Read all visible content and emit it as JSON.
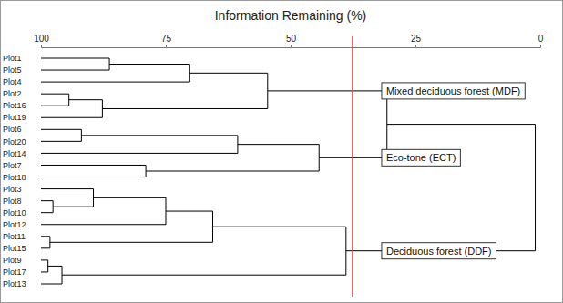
{
  "chart_data": {
    "type": "dendrogram",
    "title": "Information Remaining (%)",
    "xlim": [
      100,
      0
    ],
    "xticks": [
      100,
      75,
      50,
      25,
      0
    ],
    "threshold": {
      "value": 37.6,
      "color": "#d24b4b"
    },
    "color": "#000000",
    "tree": {
      "value": 1.0,
      "children": [
        {
          "value": 30.7,
          "children": [
            {
              "value": 54.6,
              "label": "Mixed deciduous forest (MDF)",
              "children": [
                {
                  "value": 70.2,
                  "children": [
                    {
                      "value": 86.3,
                      "children": [
                        {
                          "label": "Plot1"
                        },
                        {
                          "label": "Plot5"
                        }
                      ]
                    },
                    {
                      "label": "Plot4"
                    }
                  ]
                },
                {
                  "value": 87.7,
                  "children": [
                    {
                      "value": 94.4,
                      "children": [
                        {
                          "label": "Plot2"
                        },
                        {
                          "label": "Plot16"
                        }
                      ]
                    },
                    {
                      "label": "Plot19"
                    }
                  ]
                }
              ]
            },
            {
              "value": 44.3,
              "label": "Eco-tone (ECT)",
              "children": [
                {
                  "value": 60.6,
                  "children": [
                    {
                      "value": 91.9,
                      "children": [
                        {
                          "label": "Plot6"
                        },
                        {
                          "label": "Plot20"
                        }
                      ]
                    },
                    {
                      "label": "Plot14"
                    }
                  ]
                },
                {
                  "value": 79.0,
                  "children": [
                    {
                      "label": "Plot7"
                    },
                    {
                      "label": "Plot18"
                    }
                  ]
                }
              ]
            }
          ]
        },
        {
          "value": 38.9,
          "label": "Deciduous forest (DDF)",
          "children": [
            {
              "value": 65.6,
              "children": [
                {
                  "value": 75.0,
                  "children": [
                    {
                      "value": 89.5,
                      "children": [
                        {
                          "label": "Plot3"
                        },
                        {
                          "value": 97.6,
                          "children": [
                            {
                              "label": "Plot8"
                            },
                            {
                              "label": "Plot10"
                            }
                          ]
                        }
                      ]
                    },
                    {
                      "label": "Plot12"
                    }
                  ]
                },
                {
                  "value": 98.2,
                  "children": [
                    {
                      "label": "Plot11"
                    },
                    {
                      "label": "Plot15"
                    }
                  ]
                }
              ]
            },
            {
              "value": 95.8,
              "children": [
                {
                  "value": 98.6,
                  "children": [
                    {
                      "label": "Plot9"
                    },
                    {
                      "label": "Plot17"
                    }
                  ]
                },
                {
                  "label": "Plot13"
                }
              ]
            }
          ]
        }
      ]
    }
  }
}
